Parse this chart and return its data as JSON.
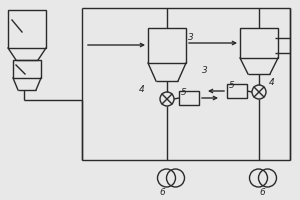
{
  "bg_color": "#e8e8e8",
  "line_color": "#2a2a2a",
  "label_color": "#2a2a2a",
  "fig_bg": "#e8e8e8"
}
